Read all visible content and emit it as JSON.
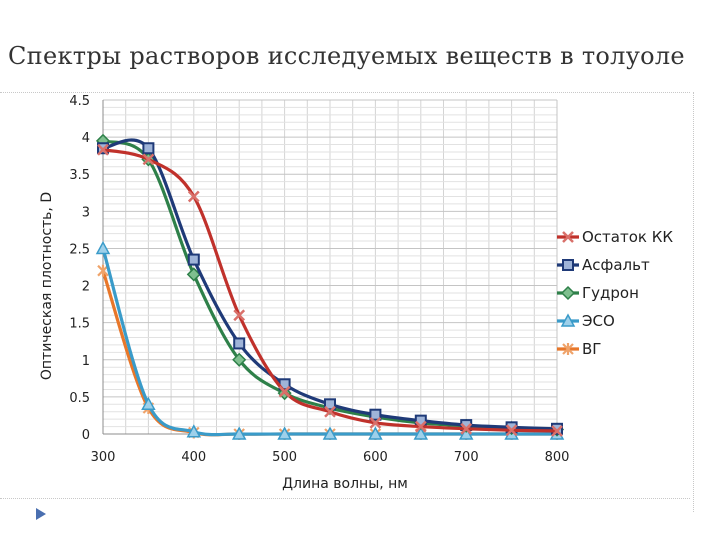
{
  "slide": {
    "title": "Спектры растворов исследуемых веществ в толуоле"
  },
  "chart_data": {
    "type": "line",
    "title": "Спектры растворов исследуемых веществ в толуоле",
    "xlabel": "Длина волны, нм",
    "ylabel": "Оптическая плотность, D",
    "xlim": [
      300,
      800
    ],
    "ylim": [
      0,
      4.5
    ],
    "xticks": [
      "300",
      "400",
      "500",
      "600",
      "700",
      "800"
    ],
    "yticks": [
      "0",
      "0.5",
      "1",
      "1.5",
      "2",
      "2.5",
      "3",
      "3.5",
      "4",
      "4.5"
    ],
    "x_tick_values": [
      300,
      400,
      500,
      600,
      700,
      800
    ],
    "y_tick_values": [
      0,
      0.5,
      1,
      1.5,
      2,
      2.5,
      3,
      3.5,
      4,
      4.5
    ],
    "grid": true,
    "legend_position": "right",
    "series": [
      {
        "name": "Остаток КК",
        "color": "#c0312b",
        "marker": "x",
        "x": [
          300,
          350,
          400,
          450,
          500,
          550,
          600,
          650,
          700,
          750,
          800
        ],
        "y": [
          3.83,
          3.7,
          3.2,
          1.6,
          0.57,
          0.3,
          0.15,
          0.1,
          0.07,
          0.05,
          0.04
        ]
      },
      {
        "name": "Асфальт",
        "color": "#1f3a78",
        "marker": "square",
        "x": [
          300,
          350,
          400,
          450,
          500,
          550,
          600,
          650,
          700,
          750,
          800
        ],
        "y": [
          3.85,
          3.85,
          2.35,
          1.22,
          0.67,
          0.4,
          0.26,
          0.18,
          0.12,
          0.09,
          0.07
        ]
      },
      {
        "name": "Гудрон",
        "color": "#2e8049",
        "marker": "diamond",
        "x": [
          300,
          350,
          400,
          450,
          500,
          550,
          600,
          650,
          700,
          750,
          800
        ],
        "y": [
          3.95,
          3.7,
          2.15,
          1.0,
          0.55,
          0.35,
          0.23,
          0.15,
          0.11,
          0.08,
          0.06
        ]
      },
      {
        "name": "ЭСО",
        "color": "#3a9bc9",
        "marker": "triangle",
        "x": [
          300,
          350,
          400,
          450,
          500,
          550,
          600,
          650,
          700,
          750,
          800
        ],
        "y": [
          2.5,
          0.4,
          0.03,
          0.0,
          0.0,
          0.0,
          0.0,
          0.0,
          0.0,
          0.0,
          0.0
        ]
      },
      {
        "name": "ВГ",
        "color": "#e8772a",
        "marker": "asterisk",
        "x": [
          300,
          350,
          400,
          450,
          500,
          550,
          600,
          650,
          700,
          750,
          800
        ],
        "y": [
          2.2,
          0.35,
          0.02,
          0.0,
          0.0,
          0.0,
          0.0,
          0.0,
          0.0,
          0.0,
          0.0
        ]
      }
    ]
  }
}
